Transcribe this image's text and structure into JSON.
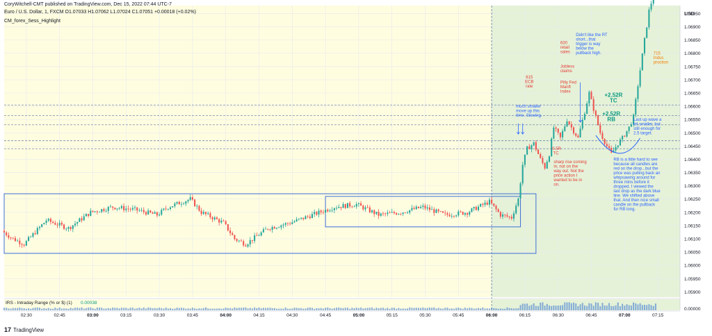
{
  "header": {
    "publish_line": "CoryWitchell-CMT published on TradingView.com, Dec 15, 2022 07:44 UTC-7",
    "symbol_line": "Euro / U.S. Dollar, 1, FXCM  O1.07033  H1.07062  L1.07024  C1.07051  +0.00018 (+0.02%)",
    "indicator_line": "CM_forex_Sess_Highlight"
  },
  "footer": {
    "brand_logo": "17",
    "brand_name": "TradingView"
  },
  "colors": {
    "up": "#26a69a",
    "down": "#ef5350",
    "session_yellow": "#fffde0",
    "session_green": "#e5f2d8",
    "box_blue": "#3d6fd6",
    "annotation_blue": "#2962ff",
    "annotation_red": "#e53935",
    "annotation_green": "#089981",
    "annotation_orange": "#f57c00"
  },
  "chart_data": {
    "type": "candlestick",
    "symbol": "Euro / U.S. Dollar, 1, FXCM",
    "y_axis": {
      "currency_label": "USD",
      "ticks": [
        "1.06950",
        "1.06900",
        "1.06850",
        "1.06800",
        "1.06750",
        "1.06700",
        "1.06650",
        "1.06600",
        "1.06550",
        "1.06500",
        "1.06450",
        "1.06400",
        "1.06350",
        "1.06300",
        "1.06250",
        "1.06200",
        "1.06150",
        "1.06100",
        "1.06050",
        "1.06000",
        "1.05950",
        "1.05900"
      ],
      "range": [
        1.0588,
        1.0698
      ]
    },
    "x_axis": {
      "ticks": [
        "02:30",
        "02:45",
        "03:00",
        "03:15",
        "03:30",
        "03:45",
        "04:00",
        "04:15",
        "04:30",
        "04:45",
        "05:00",
        "05:15",
        "05:30",
        "05:45",
        "06:00",
        "06:15",
        "06:30",
        "06:45",
        "07:00",
        "07:15"
      ],
      "bold_ticks": [
        "03:00",
        "04:00",
        "05:00",
        "06:00",
        "07:00"
      ]
    },
    "grid": true,
    "sessions": [
      {
        "name": "pre-session",
        "start": "02:20",
        "end": "06:00",
        "color": "yellow"
      },
      {
        "name": "session",
        "start": "06:00",
        "end": "07:25",
        "color": "green"
      }
    ],
    "price_path": [
      [
        "02:20",
        1.0613
      ],
      [
        "02:25",
        1.061
      ],
      [
        "02:30",
        1.0608
      ],
      [
        "02:40",
        1.0617
      ],
      [
        "02:50",
        1.0614
      ],
      [
        "03:00",
        1.062
      ],
      [
        "03:10",
        1.0622
      ],
      [
        "03:20",
        1.0621
      ],
      [
        "03:30",
        1.0619
      ],
      [
        "03:35",
        1.0622
      ],
      [
        "03:45",
        1.0625
      ],
      [
        "03:50",
        1.062
      ],
      [
        "04:00",
        1.0616
      ],
      [
        "04:05",
        1.061
      ],
      [
        "04:10",
        1.0608
      ],
      [
        "04:20",
        1.0614
      ],
      [
        "04:30",
        1.0616
      ],
      [
        "04:40",
        1.0619
      ],
      [
        "04:50",
        1.0622
      ],
      [
        "05:00",
        1.0623
      ],
      [
        "05:10",
        1.0619
      ],
      [
        "05:20",
        1.062
      ],
      [
        "05:30",
        1.0622
      ],
      [
        "05:40",
        1.0619
      ],
      [
        "05:50",
        1.062
      ],
      [
        "06:00",
        1.0624
      ],
      [
        "06:05",
        1.0619
      ],
      [
        "06:10",
        1.0618
      ],
      [
        "06:13",
        1.0625
      ],
      [
        "06:15",
        1.0638
      ],
      [
        "06:17",
        1.0644
      ],
      [
        "06:20",
        1.0646
      ],
      [
        "06:23",
        1.064
      ],
      [
        "06:25",
        1.0637
      ],
      [
        "06:27",
        1.0642
      ],
      [
        "06:29",
        1.0652
      ],
      [
        "06:32",
        1.0648
      ],
      [
        "06:35",
        1.0655
      ],
      [
        "06:37",
        1.0652
      ],
      [
        "06:40",
        1.0648
      ],
      [
        "06:43",
        1.0658
      ],
      [
        "06:45",
        1.0665
      ],
      [
        "06:48",
        1.0656
      ],
      [
        "06:50",
        1.065
      ],
      [
        "06:53",
        1.0645
      ],
      [
        "06:55",
        1.0642
      ],
      [
        "06:58",
        1.0646
      ],
      [
        "07:00",
        1.0648
      ],
      [
        "07:03",
        1.0652
      ],
      [
        "07:05",
        1.0656
      ],
      [
        "07:07",
        1.0668
      ],
      [
        "07:10",
        1.0685
      ],
      [
        "07:12",
        1.0696
      ],
      [
        "07:14",
        1.0702
      ]
    ],
    "horizontal_levels": [
      1.06605,
      1.06565,
      1.0653,
      1.0647,
      1.0644
    ],
    "range_boxes": [
      {
        "time_start": "02:20",
        "time_end": "06:20",
        "price_top": 1.0627,
        "price_bottom": 1.06045
      },
      {
        "time_start": "04:45",
        "time_end": "06:13",
        "price_top": 1.0626,
        "price_bottom": 1.06145
      }
    ],
    "annotations": [
      {
        "text": "615\nECB\nrate",
        "time": "06:17",
        "price": 1.06705,
        "color": "red"
      },
      {
        "text": "630\nretail\nsales",
        "time": "06:31",
        "price": 1.06835,
        "color": "red"
      },
      {
        "text": "Jobless\nclaims",
        "time": "06:31",
        "price": 1.06745,
        "color": "red"
      },
      {
        "text": "Pilly Fed\nManft\nIndex",
        "time": "06:31",
        "price": 1.06685,
        "color": "red"
      },
      {
        "text": "Didn't like the RT\nshort...that\ntrigger is way\nbelow the\npullback high.",
        "time": "06:38",
        "price": 1.06865,
        "color": "blue"
      },
      {
        "text": "715\nIndus\nproction",
        "time": "07:13",
        "price": 1.06795,
        "color": "orange"
      },
      {
        "text": "much smaller\nmove up this\ntime. Slowing.",
        "time": "06:11",
        "price": 1.06595,
        "color": "blue"
      },
      {
        "text": "+2.52R\nTC",
        "time": "06:55",
        "price": 1.06635,
        "color": "green"
      },
      {
        "text": "+2.52R\nRB",
        "time": "06:54",
        "price": 1.06565,
        "color": "green"
      },
      {
        "text": "Last up wave a\nbit smaller, but\nstill enough for\n2.5 target.",
        "time": "07:04",
        "price": 1.06545,
        "color": "blue"
      },
      {
        "text": "-0.5R\nTC",
        "time": "06:29",
        "price": 1.06435,
        "color": "red"
      },
      {
        "text": "sharp rise coming\nin, not on the\nway out.  Not the\nprice action I\nwanted to be in\non.",
        "time": "06:28",
        "price": 1.06385,
        "color": "red"
      },
      {
        "text": "RB is a little hard to see\nbecause all candles are\nred on the drop...but the\nprice was pulling back an\nwhipsawing around for\nthree mins before it\ndropped. I viewed the\nlast drop as the dark blue\nline. We shifted above\nthat. And then nice small\ncandle on the pullback\nfor RB long.",
        "time": "06:55",
        "price": 1.06395,
        "color": "blue"
      }
    ],
    "indicator": {
      "label": "IRS - Intraday Range (% or $) (1)",
      "value": "0.00038",
      "axis_label": "0.00000"
    }
  }
}
